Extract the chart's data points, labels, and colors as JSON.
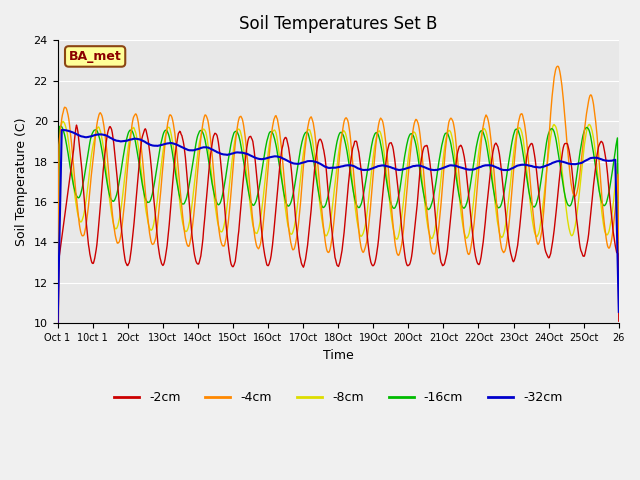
{
  "title": "Soil Temperatures Set B",
  "xlabel": "Time",
  "ylabel": "Soil Temperature (C)",
  "ylim": [
    10,
    24
  ],
  "xlim": [
    0,
    16
  ],
  "fig_bg": "#f0f0f0",
  "plot_bg": "#e8e8e8",
  "annotation_text": "BA_met",
  "annotation_box_color": "#ffff99",
  "annotation_text_color": "#8b0000",
  "annotation_edge_color": "#8b4513",
  "colors": {
    "-2cm": "#cc0000",
    "-4cm": "#ff8800",
    "-8cm": "#dddd00",
    "-16cm": "#00bb00",
    "-32cm": "#0000cc"
  },
  "legend_labels": [
    "-2cm",
    "-4cm",
    "-8cm",
    "-16cm",
    "-32cm"
  ],
  "xtick_positions": [
    0,
    1,
    2,
    3,
    4,
    5,
    6,
    7,
    8,
    9,
    10,
    11,
    12,
    13,
    14,
    15,
    16
  ],
  "xtick_labels": [
    "Oct 1",
    "10ct 1",
    "2Oct",
    "13Oct",
    "14Oct",
    "15Oct",
    "16Oct",
    "17Oct",
    "18Oct",
    "19Oct",
    "20Oct",
    "21Oct",
    "22Oct",
    "23Oct",
    "24Oct",
    "25Oct",
    "26"
  ],
  "ytick_vals": [
    10,
    12,
    14,
    16,
    18,
    20,
    22,
    24
  ],
  "n_points": 800
}
